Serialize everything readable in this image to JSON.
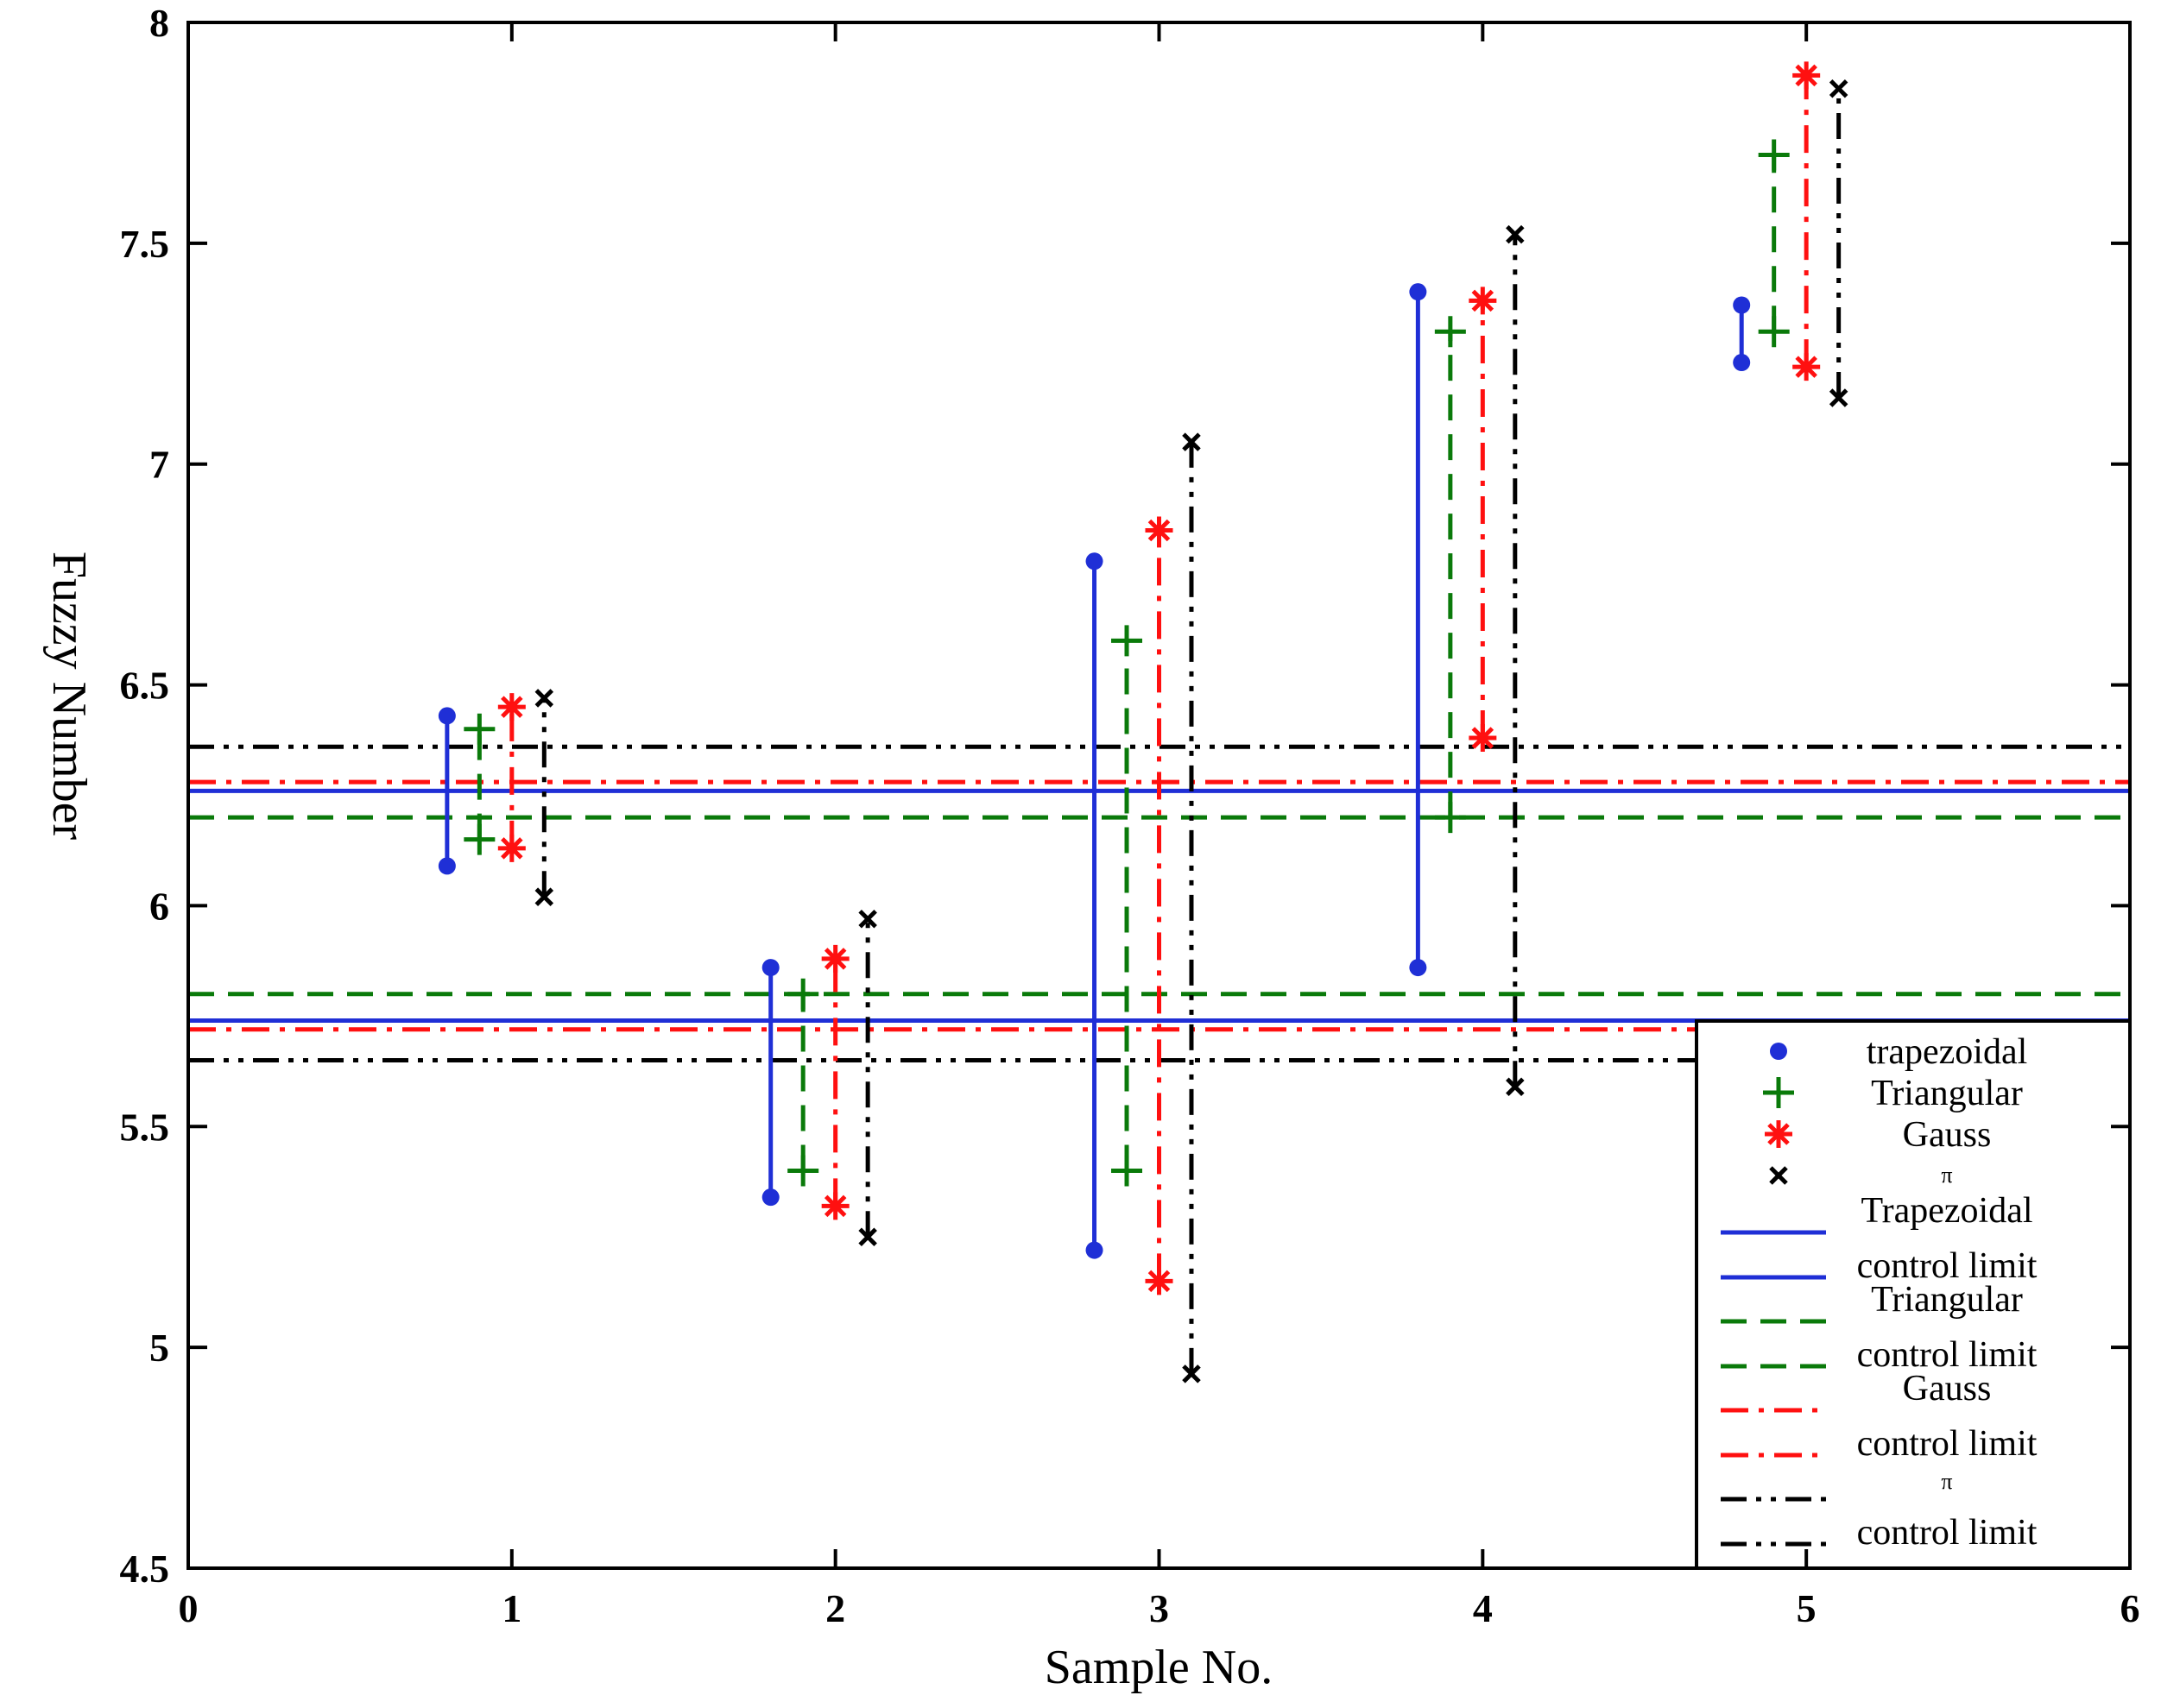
{
  "chart_data": {
    "type": "scatter",
    "xlabel": "Sample No.",
    "ylabel": "Fuzzy  Number",
    "xlim": [
      0,
      6
    ],
    "ylim": [
      4.5,
      8
    ],
    "xticks": [
      0,
      1,
      2,
      3,
      4,
      5,
      6
    ],
    "xtick_labels": [
      "0",
      "1",
      "2",
      "3",
      "4",
      "5",
      "6"
    ],
    "yticks": [
      4.5,
      5,
      5.5,
      6,
      6.5,
      7,
      7.5,
      8
    ],
    "ytick_labels": [
      "4.5",
      "5",
      "5.5",
      "6",
      "6.5",
      "7",
      "7.5",
      "8"
    ],
    "grid": false,
    "legend_position": "bottom-right",
    "colors": {
      "trapezoidal": "#1f2fd6",
      "triangular": "#0a7a0a",
      "gauss": "#ff1010",
      "pi": "#000000"
    },
    "series": [
      {
        "name": "trapezoidal",
        "key": "trapezoidal",
        "marker": "dot",
        "segment_style": "solid",
        "points": [
          {
            "x": 0.8,
            "low": 6.09,
            "high": 6.43
          },
          {
            "x": 1.8,
            "low": 5.34,
            "high": 5.86
          },
          {
            "x": 2.8,
            "low": 5.22,
            "high": 6.78
          },
          {
            "x": 3.8,
            "low": 5.86,
            "high": 7.39
          },
          {
            "x": 4.8,
            "low": 7.23,
            "high": 7.36
          }
        ]
      },
      {
        "name": "Triangular",
        "key": "triangular",
        "marker": "plus",
        "segment_style": "dashed",
        "points": [
          {
            "x": 0.9,
            "low": 6.15,
            "high": 6.4
          },
          {
            "x": 1.9,
            "low": 5.4,
            "high": 5.8
          },
          {
            "x": 2.9,
            "low": 5.4,
            "high": 6.6
          },
          {
            "x": 3.9,
            "low": 6.2,
            "high": 7.3
          },
          {
            "x": 4.9,
            "low": 7.3,
            "high": 7.7
          }
        ]
      },
      {
        "name": "Gauss",
        "key": "gauss",
        "marker": "asterisk",
        "segment_style": "dashdot",
        "points": [
          {
            "x": 1.0,
            "low": 6.13,
            "high": 6.45
          },
          {
            "x": 2.0,
            "low": 5.32,
            "high": 5.88
          },
          {
            "x": 3.0,
            "low": 5.15,
            "high": 6.85
          },
          {
            "x": 4.0,
            "low": 6.38,
            "high": 7.37
          },
          {
            "x": 5.0,
            "low": 7.22,
            "high": 7.88
          }
        ]
      },
      {
        "name": "π",
        "key": "pi",
        "marker": "x",
        "segment_style": "dashdotdot",
        "points": [
          {
            "x": 1.1,
            "low": 6.02,
            "high": 6.47
          },
          {
            "x": 2.1,
            "low": 5.25,
            "high": 5.97
          },
          {
            "x": 3.1,
            "low": 4.94,
            "high": 7.05
          },
          {
            "x": 4.1,
            "low": 5.59,
            "high": 7.52
          },
          {
            "x": 5.1,
            "low": 7.15,
            "high": 7.85
          }
        ]
      }
    ],
    "control_limits": [
      {
        "name": "Trapezoidal control limit",
        "key": "trapezoidal",
        "style": "solid",
        "upper": 6.26,
        "lower": 5.74
      },
      {
        "name": "Triangular control limit",
        "key": "triangular",
        "style": "dashed",
        "upper": 6.2,
        "lower": 5.8
      },
      {
        "name": "Gauss control limit",
        "key": "gauss",
        "style": "dashdot",
        "upper": 6.28,
        "lower": 5.72
      },
      {
        "name": "π control limit",
        "key": "pi",
        "style": "dashdotdot",
        "upper": 6.36,
        "lower": 5.65
      }
    ],
    "legend": [
      {
        "lines": [
          "trapezoidal"
        ],
        "key": "trapezoidal",
        "kind": "marker",
        "marker": "dot",
        "small": false
      },
      {
        "lines": [
          "Triangular"
        ],
        "key": "triangular",
        "kind": "marker",
        "marker": "plus",
        "small": false
      },
      {
        "lines": [
          "Gauss"
        ],
        "key": "gauss",
        "kind": "marker",
        "marker": "asterisk",
        "small": false
      },
      {
        "lines": [
          "π"
        ],
        "key": "pi",
        "kind": "marker",
        "marker": "x",
        "small": true
      },
      {
        "lines": [
          "Trapezoidal",
          "control limit"
        ],
        "key": "trapezoidal",
        "kind": "line",
        "style": "solid",
        "small": false
      },
      {
        "lines": [
          "Triangular",
          "control limit"
        ],
        "key": "triangular",
        "kind": "line",
        "style": "dashed",
        "small": false
      },
      {
        "lines": [
          "Gauss",
          "control limit"
        ],
        "key": "gauss",
        "kind": "line",
        "style": "dashdot",
        "small": false
      },
      {
        "lines": [
          "π",
          "control limit"
        ],
        "key": "pi",
        "kind": "line",
        "style": "dashdotdot",
        "small_first": true
      }
    ]
  }
}
